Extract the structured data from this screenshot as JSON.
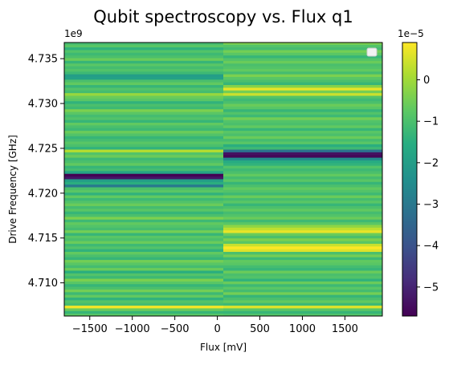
{
  "chart_data": {
    "type": "heatmap",
    "title": "Qubit spectroscopy vs. Flux q1",
    "xlabel": "Flux [mV]",
    "ylabel": "Drive Frequency [GHz]",
    "y_offset_label": "1e9",
    "colorbar_offset_label": "1e−5",
    "colormap": "viridis",
    "xlim": [
      -1800,
      1940
    ],
    "ylim": [
      4.7063,
      4.7368
    ],
    "x_ticks": [
      -1500,
      -1000,
      -500,
      0,
      500,
      1000,
      1500
    ],
    "x_tick_labels": [
      "−1500",
      "−1000",
      "−500",
      "0",
      "500",
      "1000",
      "1500"
    ],
    "y_ticks": [
      4.71,
      4.715,
      4.72,
      4.725,
      4.73,
      4.735
    ],
    "y_tick_labels": [
      "4.710",
      "4.715",
      "4.720",
      "4.725",
      "4.730",
      "4.735"
    ],
    "color_range": [
      -5.7,
      0.9
    ],
    "colorbar_ticks": [
      -5,
      -4,
      -3,
      -2,
      -1,
      0
    ],
    "colorbar_tick_labels": [
      "−5",
      "−4",
      "−3",
      "−2",
      "−1",
      "0"
    ],
    "x_segments": [
      [
        -1800,
        70
      ],
      [
        70,
        1940
      ]
    ],
    "frequency_rows": [
      4.70645,
      4.70675,
      4.70705,
      4.70735,
      4.70765,
      4.70795,
      4.70825,
      4.70855,
      4.70885,
      4.70915,
      4.70945,
      4.70975,
      4.71005,
      4.71035,
      4.71065,
      4.71095,
      4.71125,
      4.71155,
      4.71185,
      4.71215,
      4.71245,
      4.71275,
      4.71305,
      4.71335,
      4.71365,
      4.71395,
      4.71425,
      4.71455,
      4.71485,
      4.71515,
      4.71545,
      4.71575,
      4.71605,
      4.71635,
      4.71665,
      4.71695,
      4.71725,
      4.71755,
      4.71785,
      4.71815,
      4.71845,
      4.71875,
      4.71905,
      4.71935,
      4.71965,
      4.71995,
      4.72025,
      4.72055,
      4.72085,
      4.72115,
      4.72145,
      4.72175,
      4.72205,
      4.72235,
      4.72265,
      4.72295,
      4.72325,
      4.72355,
      4.72385,
      4.72415,
      4.72445,
      4.72475,
      4.72505,
      4.72535,
      4.72565,
      4.72595,
      4.72625,
      4.72655,
      4.72685,
      4.72715,
      4.72745,
      4.72775,
      4.72805,
      4.72835,
      4.72865,
      4.72895,
      4.72925,
      4.72955,
      4.72985,
      4.73015,
      4.73045,
      4.73075,
      4.73105,
      4.73135,
      4.73165,
      4.73195,
      4.73225,
      4.73255,
      4.73285,
      4.73315,
      4.73345,
      4.73375,
      4.73405,
      4.73435,
      4.73465,
      4.73495,
      4.73525,
      4.73555,
      4.73585,
      4.73615,
      4.73645,
      4.73675
    ],
    "values_left": [
      -0.8,
      -1.3,
      -0.6,
      0.8,
      -1.1,
      -0.9,
      -1.4,
      -0.7,
      -1.2,
      -0.5,
      -1.0,
      -1.3,
      -0.8,
      -0.4,
      -1.2,
      -0.9,
      -1.5,
      -0.6,
      -1.1,
      -0.8,
      -0.5,
      -1.3,
      -1.0,
      -0.7,
      -1.4,
      -0.9,
      -1.2,
      -0.6,
      -1.0,
      -0.8,
      -1.3,
      -0.5,
      -1.1,
      -0.9,
      -0.7,
      -1.2,
      -0.4,
      -1.0,
      -1.3,
      -0.8,
      -1.1,
      -0.6,
      -0.9,
      -1.2,
      -0.7,
      -1.4,
      -0.8,
      -1.0,
      -3.0,
      -1.5,
      -2.0,
      -5.3,
      -5.7,
      -1.8,
      -1.1,
      -1.3,
      -0.7,
      -1.0,
      -1.2,
      -0.6,
      -0.9,
      0.2,
      -1.4,
      -1.0,
      -0.8,
      -1.1,
      -1.3,
      -0.9,
      -0.6,
      -1.2,
      -1.0,
      -0.7,
      -1.3,
      -0.9,
      -1.1,
      -0.8,
      -0.4,
      -1.2,
      -1.0,
      -1.4,
      -0.8,
      -0.6,
      -0.1,
      -1.1,
      -0.9,
      -1.3,
      -0.7,
      -1.0,
      -1.9,
      -2.0,
      -1.2,
      -0.9,
      -1.1,
      -0.8,
      -1.3,
      -0.6,
      -1.0,
      -1.2,
      -0.9,
      -1.4,
      -0.8,
      -1.1
    ],
    "values_right": [
      -0.9,
      -1.3,
      -0.8,
      0.6,
      -1.2,
      -0.7,
      -1.0,
      -1.3,
      -0.5,
      -1.1,
      -0.8,
      -1.2,
      -0.6,
      -1.4,
      -0.9,
      -1.0,
      -0.6,
      -1.3,
      -1.1,
      -0.8,
      -0.7,
      -1.2,
      -0.5,
      -1.0,
      0.6,
      0.9,
      0.4,
      -0.8,
      -0.4,
      -1.0,
      -0.6,
      0.7,
      0.3,
      -0.2,
      -0.8,
      -1.2,
      -0.6,
      -0.9,
      -1.1,
      -0.7,
      -1.0,
      -1.3,
      -0.8,
      -1.1,
      -0.6,
      -1.2,
      -0.9,
      -0.7,
      -1.0,
      -1.3,
      -0.8,
      -1.1,
      -0.7,
      -1.0,
      -1.2,
      -0.9,
      -1.4,
      -1.6,
      -2.6,
      -5.6,
      -5.4,
      -3.2,
      -1.2,
      -1.5,
      -0.8,
      -1.1,
      -0.6,
      -1.0,
      -0.8,
      -1.3,
      -0.7,
      -1.0,
      -0.9,
      -0.5,
      -1.2,
      -0.9,
      -1.3,
      -0.8,
      -0.6,
      -1.0,
      -1.2,
      -0.9,
      0.4,
      -0.5,
      0.7,
      -0.3,
      -1.3,
      -1.0,
      -0.8,
      -0.4,
      -1.1,
      -0.7,
      -0.9,
      -1.0,
      -0.6,
      -0.9,
      -1.3,
      -0.8,
      -0.5,
      -1.1,
      -0.9,
      -0.4
    ],
    "legend_placement": "upper right",
    "grid": false
  }
}
